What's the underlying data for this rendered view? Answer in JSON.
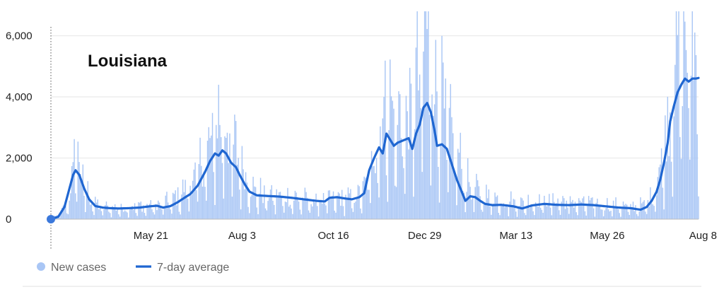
{
  "chart_data": {
    "type": "bar+line",
    "title": "Louisiana",
    "xlabel": "",
    "ylabel": "",
    "ylim": [
      0,
      6800
    ],
    "y_ticks": [
      {
        "value": 0,
        "label": "0"
      },
      {
        "value": 2000,
        "label": "2,000"
      },
      {
        "value": 4000,
        "label": "4,000"
      },
      {
        "value": 6000,
        "label": "6,000"
      }
    ],
    "x_ticks": [
      {
        "index": 81,
        "label": "May 21"
      },
      {
        "index": 155,
        "label": "Aug 3"
      },
      {
        "index": 229,
        "label": "Oct 16"
      },
      {
        "index": 303,
        "label": "Dec 29"
      },
      {
        "index": 377,
        "label": "Mar 13"
      },
      {
        "index": 451,
        "label": "May 26"
      },
      {
        "index": 525,
        "label": "Aug 8"
      }
    ],
    "legend": [
      {
        "name": "New cases",
        "color": "#a9c6f5",
        "marker": "dot"
      },
      {
        "name": "7-day average",
        "color": "#1f66d1",
        "marker": "line"
      }
    ],
    "grid": true,
    "series_daily_name": "New cases",
    "series_avg_name": "7-day average",
    "daily_keyframes": [
      [
        0,
        0
      ],
      [
        8,
        180
      ],
      [
        14,
        600
      ],
      [
        18,
        1400
      ],
      [
        20,
        2600
      ],
      [
        22,
        2100
      ],
      [
        24,
        1600
      ],
      [
        28,
        1000
      ],
      [
        33,
        600
      ],
      [
        40,
        400
      ],
      [
        55,
        350
      ],
      [
        70,
        420
      ],
      [
        85,
        450
      ],
      [
        95,
        550
      ],
      [
        105,
        800
      ],
      [
        112,
        1100
      ],
      [
        118,
        1500
      ],
      [
        124,
        2000
      ],
      [
        130,
        2400
      ],
      [
        134,
        2900
      ],
      [
        136,
        3300
      ],
      [
        142,
        3000
      ],
      [
        146,
        2600
      ],
      [
        150,
        2200
      ],
      [
        154,
        1900
      ],
      [
        158,
        1400
      ],
      [
        165,
        900
      ],
      [
        175,
        800
      ],
      [
        185,
        750
      ],
      [
        195,
        700
      ],
      [
        205,
        650
      ],
      [
        215,
        600
      ],
      [
        225,
        650
      ],
      [
        235,
        700
      ],
      [
        245,
        700
      ],
      [
        255,
        1000
      ],
      [
        260,
        1800
      ],
      [
        264,
        2600
      ],
      [
        268,
        3200
      ],
      [
        272,
        4000
      ],
      [
        276,
        3500
      ],
      [
        280,
        3300
      ],
      [
        286,
        3100
      ],
      [
        292,
        3500
      ],
      [
        298,
        4600
      ],
      [
        302,
        5600
      ],
      [
        305,
        6200
      ],
      [
        309,
        5200
      ],
      [
        313,
        4200
      ],
      [
        318,
        3500
      ],
      [
        323,
        2800
      ],
      [
        328,
        2200
      ],
      [
        333,
        1700
      ],
      [
        338,
        1200
      ],
      [
        345,
        900
      ],
      [
        353,
        750
      ],
      [
        360,
        700
      ],
      [
        370,
        600
      ],
      [
        380,
        520
      ],
      [
        395,
        600
      ],
      [
        410,
        600
      ],
      [
        425,
        550
      ],
      [
        440,
        500
      ],
      [
        455,
        450
      ],
      [
        470,
        400
      ],
      [
        480,
        450
      ],
      [
        486,
        650
      ],
      [
        491,
        1200
      ],
      [
        496,
        2000
      ],
      [
        500,
        3200
      ],
      [
        504,
        4800
      ],
      [
        508,
        5600
      ],
      [
        512,
        6000
      ],
      [
        518,
        5700
      ],
      [
        523,
        5400
      ],
      [
        525,
        5200
      ]
    ],
    "avg_keyframes": [
      [
        0,
        0
      ],
      [
        6,
        80
      ],
      [
        11,
        400
      ],
      [
        15,
        1000
      ],
      [
        18,
        1450
      ],
      [
        20,
        1600
      ],
      [
        23,
        1450
      ],
      [
        27,
        1000
      ],
      [
        31,
        650
      ],
      [
        36,
        430
      ],
      [
        42,
        380
      ],
      [
        48,
        360
      ],
      [
        55,
        350
      ],
      [
        63,
        360
      ],
      [
        72,
        380
      ],
      [
        80,
        420
      ],
      [
        86,
        440
      ],
      [
        91,
        380
      ],
      [
        97,
        430
      ],
      [
        103,
        560
      ],
      [
        109,
        720
      ],
      [
        113,
        820
      ],
      [
        119,
        1100
      ],
      [
        125,
        1550
      ],
      [
        129,
        1900
      ],
      [
        133,
        2150
      ],
      [
        136,
        2080
      ],
      [
        139,
        2250
      ],
      [
        142,
        2150
      ],
      [
        146,
        1850
      ],
      [
        150,
        1700
      ],
      [
        153,
        1450
      ],
      [
        157,
        1150
      ],
      [
        161,
        900
      ],
      [
        167,
        780
      ],
      [
        175,
        760
      ],
      [
        185,
        740
      ],
      [
        195,
        700
      ],
      [
        205,
        650
      ],
      [
        215,
        600
      ],
      [
        222,
        580
      ],
      [
        226,
        700
      ],
      [
        232,
        720
      ],
      [
        238,
        680
      ],
      [
        244,
        650
      ],
      [
        250,
        720
      ],
      [
        254,
        850
      ],
      [
        258,
        1600
      ],
      [
        262,
        2000
      ],
      [
        266,
        2350
      ],
      [
        269,
        2150
      ],
      [
        272,
        2800
      ],
      [
        275,
        2600
      ],
      [
        278,
        2400
      ],
      [
        281,
        2500
      ],
      [
        284,
        2550
      ],
      [
        287,
        2600
      ],
      [
        290,
        2650
      ],
      [
        293,
        2300
      ],
      [
        296,
        2800
      ],
      [
        299,
        3100
      ],
      [
        302,
        3650
      ],
      [
        305,
        3800
      ],
      [
        308,
        3500
      ],
      [
        311,
        2900
      ],
      [
        313,
        2400
      ],
      [
        317,
        2450
      ],
      [
        321,
        2300
      ],
      [
        325,
        1800
      ],
      [
        329,
        1300
      ],
      [
        333,
        900
      ],
      [
        336,
        600
      ],
      [
        340,
        750
      ],
      [
        344,
        720
      ],
      [
        348,
        600
      ],
      [
        352,
        500
      ],
      [
        358,
        460
      ],
      [
        365,
        470
      ],
      [
        375,
        420
      ],
      [
        382,
        350
      ],
      [
        390,
        450
      ],
      [
        400,
        500
      ],
      [
        410,
        470
      ],
      [
        420,
        460
      ],
      [
        430,
        480
      ],
      [
        440,
        460
      ],
      [
        450,
        420
      ],
      [
        460,
        380
      ],
      [
        470,
        360
      ],
      [
        478,
        310
      ],
      [
        483,
        400
      ],
      [
        487,
        600
      ],
      [
        491,
        900
      ],
      [
        494,
        1300
      ],
      [
        497,
        1850
      ],
      [
        500,
        2500
      ],
      [
        502,
        3200
      ],
      [
        505,
        3700
      ],
      [
        508,
        4150
      ],
      [
        511,
        4400
      ],
      [
        514,
        4600
      ],
      [
        517,
        4500
      ],
      [
        520,
        4600
      ],
      [
        523,
        4600
      ],
      [
        525,
        4620
      ]
    ]
  }
}
